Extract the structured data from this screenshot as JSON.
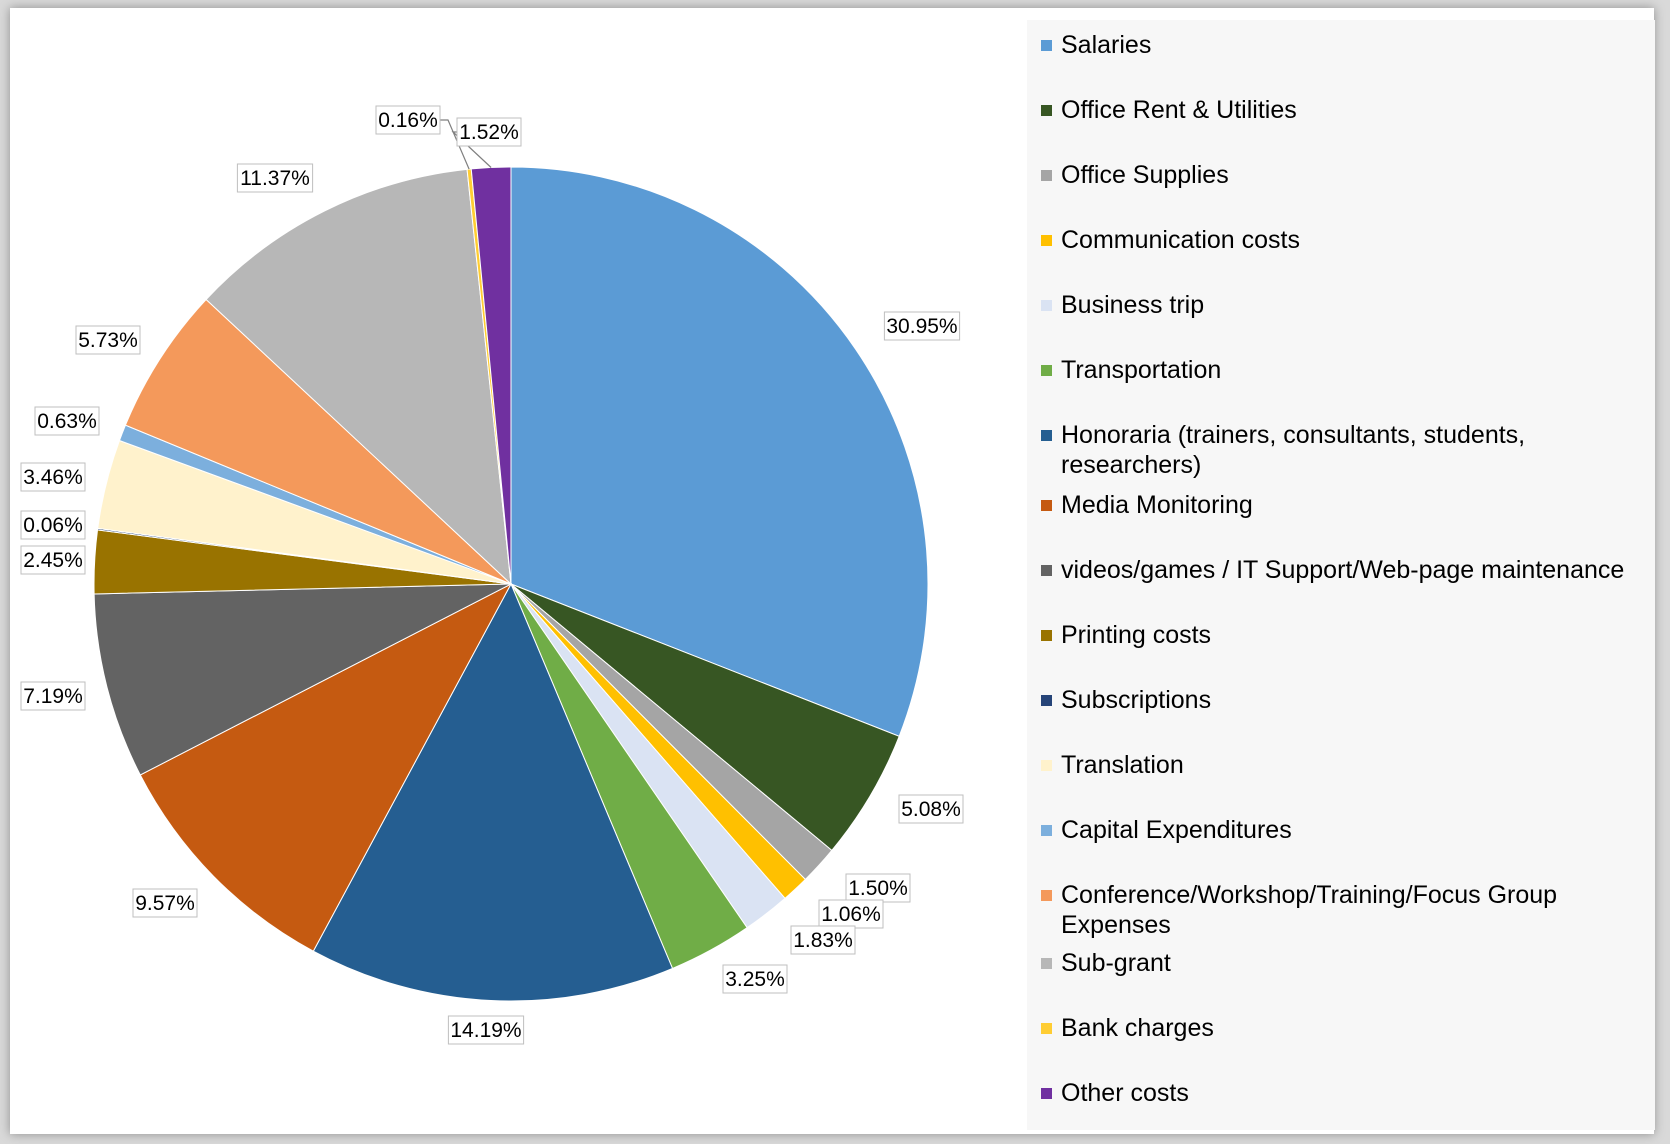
{
  "chart_data": {
    "type": "pie",
    "title": "",
    "slices": [
      {
        "label": "Salaries",
        "value": 30.95,
        "display": "30.95%",
        "color": "#5b9bd5"
      },
      {
        "label": "Office Rent & Utilities",
        "value": 5.08,
        "display": "5.08%",
        "color": "#375623"
      },
      {
        "label": "Office Supplies",
        "value": 1.5,
        "display": "1.50%",
        "color": "#a5a5a5"
      },
      {
        "label": "Communication costs",
        "value": 1.06,
        "display": "1.06%",
        "color": "#ffc000"
      },
      {
        "label": "Business trip",
        "value": 1.83,
        "display": "1.83%",
        "color": "#dae3f3"
      },
      {
        "label": "Transportation",
        "value": 3.25,
        "display": "3.25%",
        "color": "#70ad47"
      },
      {
        "label": "Honoraria (trainers, consultants, students, researchers)",
        "value": 14.19,
        "display": "14.19%",
        "color": "#255e91"
      },
      {
        "label": "Media Monitoring",
        "value": 9.57,
        "display": "9.57%",
        "color": "#c55a11"
      },
      {
        "label": "videos/games / IT Support/Web-page maintenance",
        "value": 7.19,
        "display": "7.19%",
        "color": "#636363"
      },
      {
        "label": "Printing costs",
        "value": 2.45,
        "display": "2.45%",
        "color": "#997300"
      },
      {
        "label": "Subscriptions",
        "value": 0.06,
        "display": "0.06%",
        "color": "#264478"
      },
      {
        "label": "Translation",
        "value": 3.46,
        "display": "3.46%",
        "color": "#fff2cc"
      },
      {
        "label": "Capital Expenditures",
        "value": 0.63,
        "display": "0.63%",
        "color": "#7cafdd"
      },
      {
        "label": "Conference/Workshop/Training/Focus Group Expenses",
        "value": 5.73,
        "display": "5.73%",
        "color": "#f4995b"
      },
      {
        "label": "Sub-grant",
        "value": 11.37,
        "display": "11.37%",
        "color": "#b7b7b7"
      },
      {
        "label": "Bank charges",
        "value": 0.16,
        "display": "0.16%",
        "color": "#ffcd33"
      },
      {
        "label": "Other costs",
        "value": 1.52,
        "display": "1.52%",
        "color": "#7030a0"
      }
    ],
    "legend_position": "right"
  }
}
